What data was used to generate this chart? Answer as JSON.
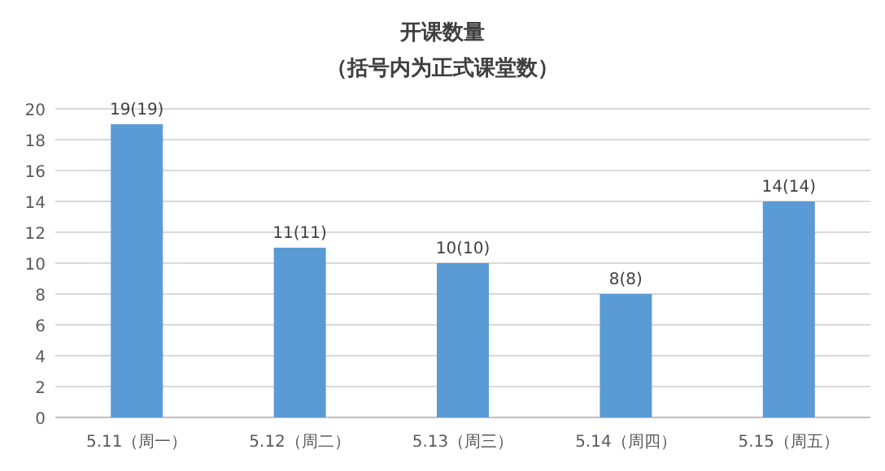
{
  "chart_data": {
    "type": "bar",
    "title": "开课数量",
    "subtitle": "（括号内为正式课堂数）",
    "categories": [
      "5.11（周一）",
      "5.12（周二）",
      "5.13（周三）",
      "5.14（周四）",
      "5.15（周五）"
    ],
    "values": [
      19,
      11,
      10,
      8,
      14
    ],
    "value_labels": [
      "19(19)",
      "11(11)",
      "10(10)",
      "8(8)",
      "14(14)"
    ],
    "color": "#5b9bd5",
    "ylim": [
      0,
      20
    ],
    "yticks": [
      0,
      2,
      4,
      6,
      8,
      10,
      12,
      14,
      16,
      18,
      20
    ],
    "grid": "y"
  }
}
